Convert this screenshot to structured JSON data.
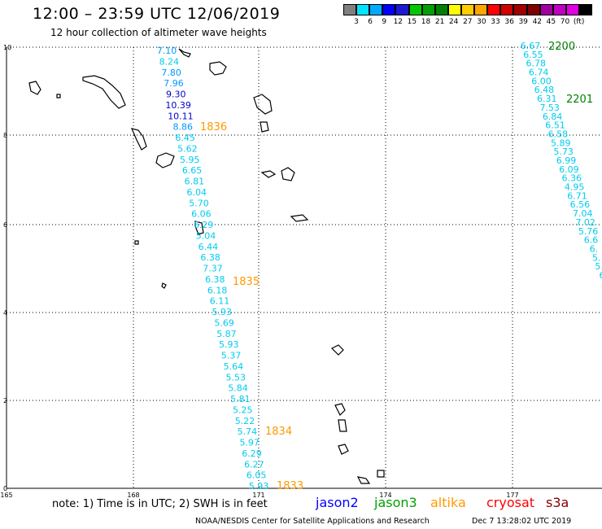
{
  "header": {
    "title": "12:00 – 23:59 UTC 12/06/2019",
    "subtitle": "12 hour collection of altimeter wave heights"
  },
  "legend": {
    "colors": [
      "#808080",
      "#00e5ff",
      "#00aaff",
      "#0000ff",
      "#1a1ad0",
      "#00c800",
      "#00a000",
      "#008000",
      "#ffff00",
      "#ffcc00",
      "#ffa500",
      "#ff0000",
      "#d00000",
      "#a00000",
      "#800000",
      "#a000a0",
      "#c000c0",
      "#e000e0",
      "#000000"
    ],
    "labels": [
      "3",
      "6",
      "9",
      "12",
      "15",
      "18",
      "21",
      "24",
      "27",
      "30",
      "33",
      "36",
      "39",
      "42",
      "45",
      "70",
      "(ft)"
    ]
  },
  "axes": {
    "y_ticks": [
      "10",
      "8",
      "6",
      "4",
      "2",
      "0"
    ],
    "x_ticks": [
      "165",
      "168",
      "171",
      "174",
      "177"
    ]
  },
  "tracks": [
    {
      "name": "west",
      "values": [
        "7.10",
        "8.24",
        "7.80",
        "7.96",
        "9.30",
        "10.39",
        "10.11",
        "8.86",
        "6.45",
        "5.62",
        "5.95",
        "6.65",
        "6.81",
        "6.04",
        "5.70",
        "6.06",
        "6.29",
        "5.04",
        "6.44",
        "6.38",
        "7.37",
        "6.38",
        "6.18",
        "6.11",
        "5.93",
        "5.69",
        "5.87",
        "5.93",
        "5.37",
        "5.64",
        "5.53",
        "5.84",
        "5.81",
        "5.25",
        "5.22",
        "5.74",
        "5.97",
        "6.29",
        "6.27",
        "6.05",
        "5.93"
      ],
      "colors": [
        "#0099ff",
        "#00ccee",
        "#0099ff",
        "#0099ff",
        "#0000cc",
        "#0000cc",
        "#0000cc",
        "#0099ff",
        "#00ccee",
        "#00ccee",
        "#00ccee",
        "#00ccee",
        "#00ccee",
        "#00ccee",
        "#00ccee",
        "#00ccee",
        "#00ccee",
        "#00ccee",
        "#00ccee",
        "#00ccee",
        "#00ccee",
        "#00ccee",
        "#00ccee",
        "#00ccee",
        "#00ccee",
        "#00ccee",
        "#00ccee",
        "#00ccee",
        "#00ccee",
        "#00ccee",
        "#00ccee",
        "#00ccee",
        "#00ccee",
        "#00ccee",
        "#00ccee",
        "#00ccee",
        "#00ccee",
        "#00ccee",
        "#00ccee",
        "#00ccee",
        "#00ccee"
      ],
      "times": [
        {
          "label": "1836",
          "color": "#ff9900"
        },
        {
          "label": "1835",
          "color": "#ff9900"
        },
        {
          "label": "1834",
          "color": "#ff9900"
        },
        {
          "label": "1833",
          "color": "#ff9900"
        }
      ]
    },
    {
      "name": "east",
      "values": [
        "6.67",
        "6.55",
        "6.78",
        "6.74",
        "6.00",
        "6.48",
        "6.31",
        "7.53",
        "6.84",
        "6.51",
        "6.58",
        "5.89",
        "5.73",
        "6.99",
        "6.09",
        "6.36",
        "4.95",
        "6.71",
        "6.56",
        "7.04",
        "7.02",
        "5.76",
        "6.6",
        "6.",
        "5.",
        "5.",
        "6"
      ],
      "colors": [
        "#00ccee",
        "#00ccee",
        "#00ccee",
        "#00ccee",
        "#00ccee",
        "#00ccee",
        "#00ccee",
        "#00ccee",
        "#00ccee",
        "#00ccee",
        "#00ccee",
        "#00ccee",
        "#00ccee",
        "#00ccee",
        "#00ccee",
        "#00ccee",
        "#00ccee",
        "#00ccee",
        "#00ccee",
        "#00ccee",
        "#00ccee",
        "#00ccee",
        "#00ccee",
        "#00ccee",
        "#00ccee",
        "#00ccee",
        "#00ccee"
      ],
      "times": [
        {
          "label": "2200",
          "color": "#008000"
        },
        {
          "label": "2201",
          "color": "#008000"
        }
      ]
    }
  ],
  "footer": {
    "note": "note: 1) Time is in UTC; 2) SWH is in feet",
    "satellites": [
      {
        "name": "jason2",
        "color": "#0000ff"
      },
      {
        "name": "jason3",
        "color": "#00a000"
      },
      {
        "name": "altika",
        "color": "#ff9900"
      },
      {
        "name": "cryosat",
        "color": "#ff0000"
      },
      {
        "name": "s3a",
        "color": "#800000"
      }
    ],
    "credit": "NOAA/NESDIS Center for Satellite Applications and Research",
    "generated": "Dec  7 13:28:02 UTC 2019"
  }
}
